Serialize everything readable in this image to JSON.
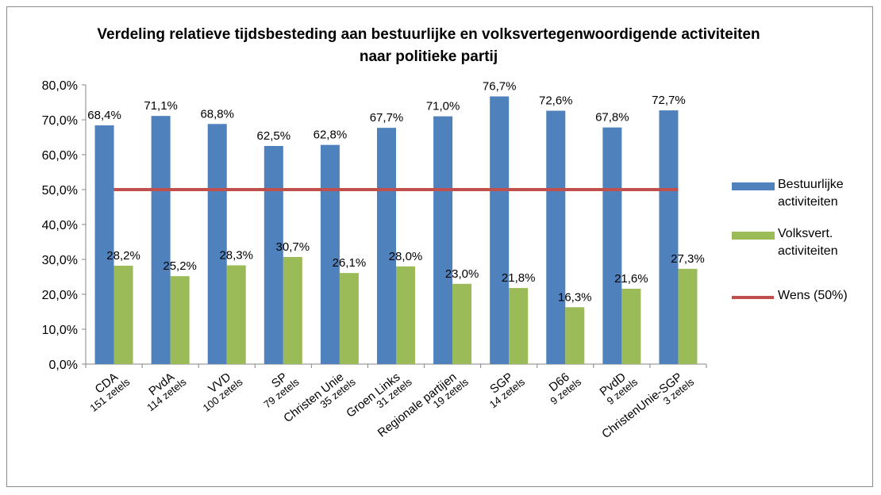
{
  "chart_data": {
    "type": "bar",
    "title": "Verdeling relatieve tijdsbesteding aan bestuurlijke en volksvertegenwoordigende activiteiten naar politieke partij",
    "categories": [
      "CDA",
      "PvdA",
      "VVD",
      "SP",
      "Christen Unie",
      "Groen Links",
      "Regionale partijen",
      "SGP",
      "D66",
      "PvdD",
      "ChristenUnie-SGP"
    ],
    "category_notes": [
      "151 zetels",
      "114 zetels",
      "100 zetels",
      "79 zetels",
      "35 zetels",
      "31 zetels",
      "19 zetels",
      "14 zetels",
      "9 zetels",
      "9 zetels",
      "3 zetels"
    ],
    "series": [
      {
        "name": "Bestuurlijke activiteiten",
        "color": "#4f81bd",
        "type": "bar",
        "values": [
          68.4,
          71.1,
          68.8,
          62.5,
          62.8,
          67.7,
          71.0,
          76.7,
          72.6,
          67.8,
          72.7
        ],
        "value_labels": [
          "68,4%",
          "71,1%",
          "68,8%",
          "62,5%",
          "62,8%",
          "67,7%",
          "71,0%",
          "76,7%",
          "72,6%",
          "67,8%",
          "72,7%"
        ]
      },
      {
        "name": "Volksvert. activiteiten",
        "color": "#9bbb59",
        "type": "bar",
        "values": [
          28.2,
          25.2,
          28.3,
          30.7,
          26.1,
          28.0,
          23.0,
          21.8,
          16.3,
          21.6,
          27.3
        ],
        "value_labels": [
          "28,2%",
          "25,2%",
          "28,3%",
          "30,7%",
          "26,1%",
          "28,0%",
          "23,0%",
          "21,8%",
          "16,3%",
          "21,6%",
          "27,3%"
        ]
      },
      {
        "name": "Wens (50%)",
        "color": "#c0504d",
        "type": "line",
        "values": [
          50,
          50,
          50,
          50,
          50,
          50,
          50,
          50,
          50,
          50,
          50
        ]
      }
    ],
    "ylim": [
      0,
      80
    ],
    "yticks": [
      {
        "value": 0,
        "label": "0,0%"
      },
      {
        "value": 10,
        "label": "10,0%"
      },
      {
        "value": 20,
        "label": "20,0%"
      },
      {
        "value": 30,
        "label": "30,0%"
      },
      {
        "value": 40,
        "label": "40,0%"
      },
      {
        "value": 50,
        "label": "50,0%"
      },
      {
        "value": 60,
        "label": "60,0%"
      },
      {
        "value": 70,
        "label": "70,0%"
      },
      {
        "value": 80,
        "label": "80,0%"
      }
    ],
    "grid": false,
    "legend": "right"
  }
}
